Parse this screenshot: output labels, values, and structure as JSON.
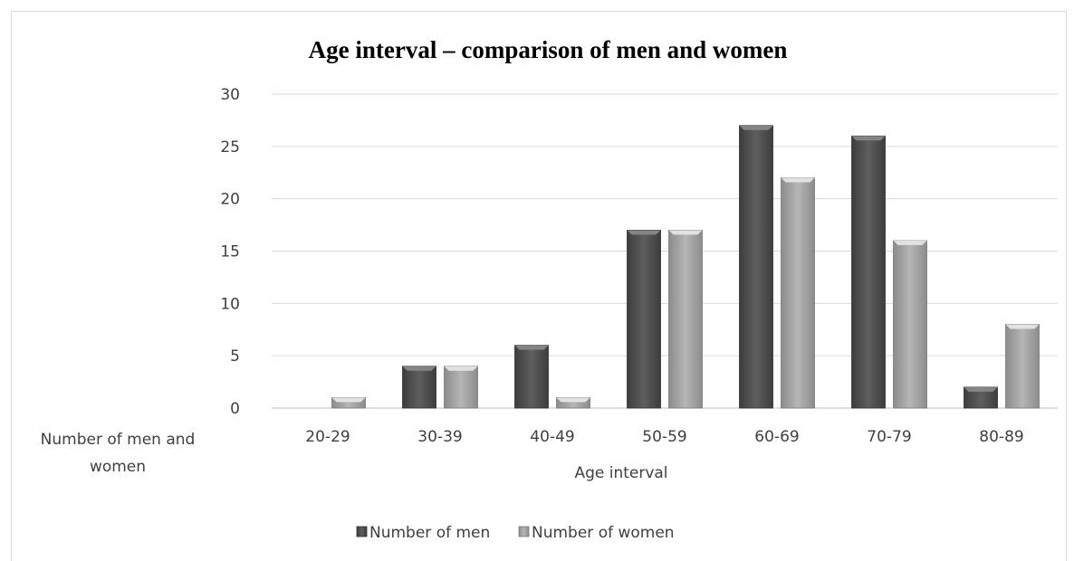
{
  "chart_data": {
    "type": "bar",
    "title": "Age interval – comparison of men and women",
    "xlabel": "Age interval",
    "ylabel_lines": [
      "Number of men and",
      "women"
    ],
    "categories": [
      "20-29",
      "30-39",
      "40-49",
      "50-59",
      "60-69",
      "70-79",
      "80-89"
    ],
    "series": [
      {
        "name": "Number of men",
        "values": [
          0,
          4,
          6,
          17,
          27,
          26,
          2
        ],
        "color": "#595959"
      },
      {
        "name": "Number of women",
        "values": [
          1,
          4,
          1,
          17,
          22,
          16,
          8
        ],
        "color": "#a6a6a6"
      }
    ],
    "ylim": [
      0,
      30
    ],
    "yticks": [
      0,
      5,
      10,
      15,
      20,
      25,
      30
    ],
    "grid": true,
    "legend_position": "bottom"
  }
}
